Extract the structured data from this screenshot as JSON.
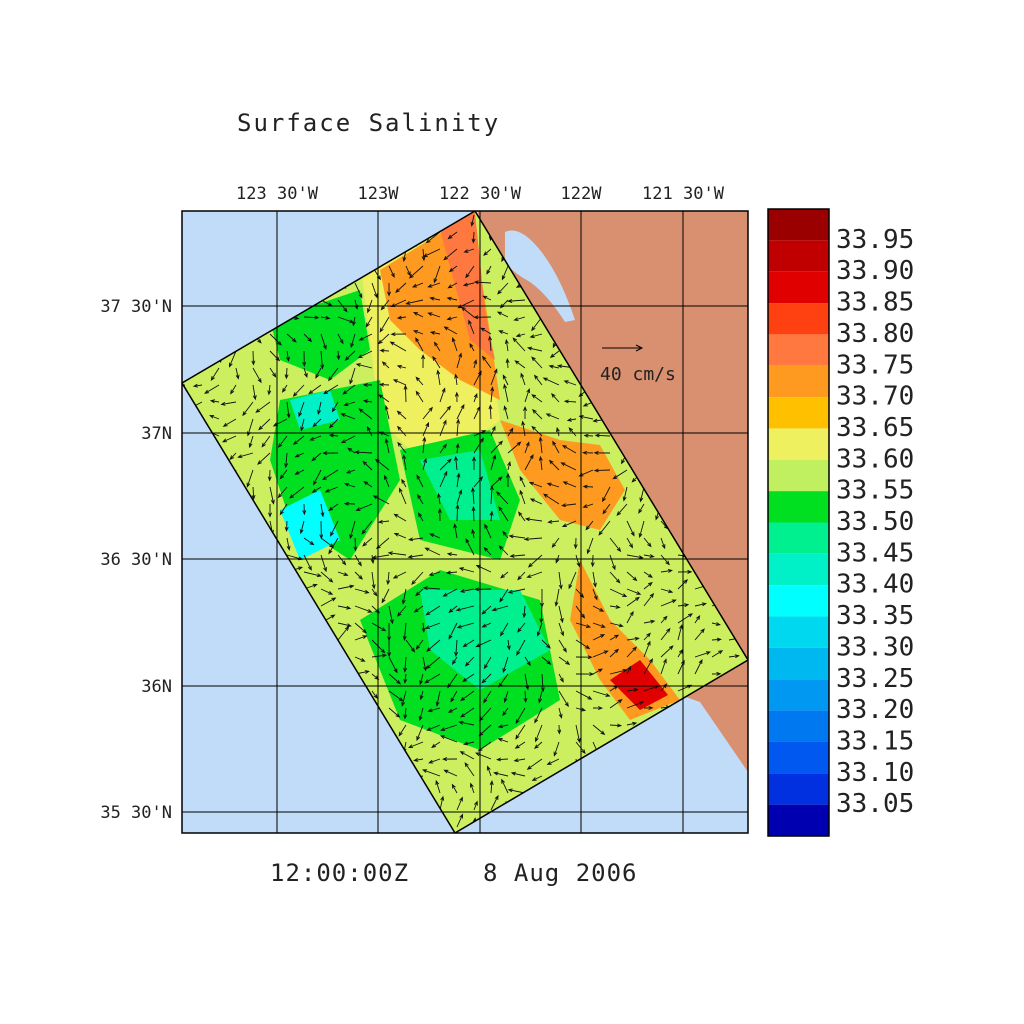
{
  "title": "Surface Salinity",
  "map": {
    "lon_labels": [
      "123 30'W",
      "123W",
      "122 30'W",
      "122W",
      "121 30'W"
    ],
    "lat_labels": [
      "37 30'N",
      "37N",
      "36 30'N",
      "36N",
      "35 30'N"
    ],
    "vector_scale": "40 cm/s"
  },
  "time": "12:00:00Z",
  "date": "8 Aug 2006",
  "colorbar": {
    "labels": [
      "33.95",
      "33.90",
      "33.85",
      "33.80",
      "33.75",
      "33.70",
      "33.65",
      "33.60",
      "33.55",
      "33.50",
      "33.45",
      "33.40",
      "33.35",
      "33.30",
      "33.25",
      "33.20",
      "33.15",
      "33.10",
      "33.05"
    ],
    "colors": [
      "#9b0000",
      "#c00000",
      "#e00000",
      "#ff4010",
      "#ff7840",
      "#ff9a20",
      "#ffc000",
      "#eef060",
      "#c0f060",
      "#00e020",
      "#00f090",
      "#00f0c8",
      "#00ffff",
      "#00d8f0",
      "#00b8f0",
      "#0098f0",
      "#0078f0",
      "#0058f0",
      "#0030e0",
      "#0000b0"
    ]
  }
}
